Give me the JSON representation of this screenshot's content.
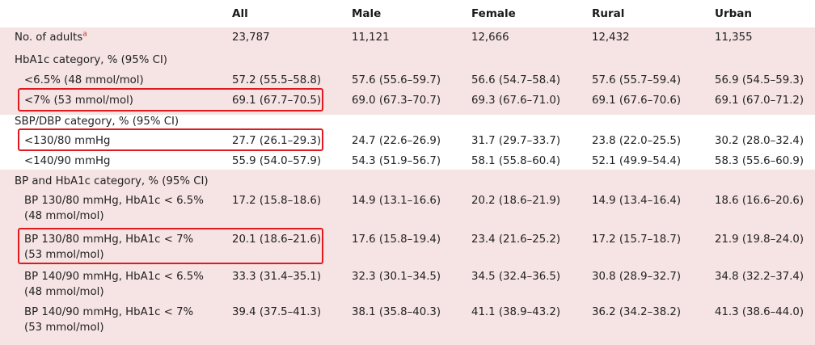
{
  "columns": {
    "all": "All",
    "male": "Male",
    "female": "Female",
    "rural": "Rural",
    "urban": "Urban"
  },
  "rows": [
    {
      "label": "No. of adults",
      "label_sup": "a",
      "all": "23,787",
      "male": "11,121",
      "female": "12,666",
      "rural": "12,432",
      "urban": "11,355"
    },
    {
      "section": "HbA1c category, % (95% CI)"
    },
    {
      "label": "<6.5% (48 mmol/mol)",
      "all": "57.2 (55.5–58.8)",
      "male": "57.6 (55.6–59.7)",
      "female": "56.6 (54.7–58.4)",
      "rural": "57.6 (55.7–59.4)",
      "urban": "56.9 (54.5–59.3)"
    },
    {
      "label": "<7% (53 mmol/mol)",
      "all": "69.1 (67.7–70.5)",
      "male": "69.0 (67.3–70.7)",
      "female": "69.3 (67.6–71.0)",
      "rural": "69.1 (67.6–70.6)",
      "urban": "69.1 (67.0–71.2)"
    },
    {
      "section": "SBP/DBP category, % (95% CI)"
    },
    {
      "label": "<130/80 mmHg",
      "all": "27.7 (26.1–29.3)",
      "male": "24.7 (22.6–26.9)",
      "female": "31.7 (29.7–33.7)",
      "rural": "23.8 (22.0–25.5)",
      "urban": "30.2 (28.0–32.4)"
    },
    {
      "label": "<140/90 mmHg",
      "all": "55.9 (54.0–57.9)",
      "male": "54.3 (51.9–56.7)",
      "female": "58.1 (55.8–60.4)",
      "rural": "52.1 (49.9–54.4)",
      "urban": "58.3 (55.6–60.9)"
    },
    {
      "section": "BP and HbA1c category, % (95% CI)"
    },
    {
      "label": "BP 130/80 mmHg, HbA1c < 6.5%",
      "label2": "(48 mmol/mol)",
      "all": "17.2 (15.8–18.6)",
      "male": "14.9 (13.1–16.6)",
      "female": "20.2 (18.6–21.9)",
      "rural": "14.9 (13.4–16.4)",
      "urban": "18.6 (16.6–20.6)"
    },
    {
      "label": "BP 130/80 mmHg, HbA1c < 7%",
      "label2": "(53 mmol/mol)",
      "all": "20.1 (18.6–21.6)",
      "male": "17.6 (15.8–19.4)",
      "female": "23.4 (21.6–25.2)",
      "rural": "17.2 (15.7–18.7)",
      "urban": "21.9 (19.8–24.0)"
    },
    {
      "label": "BP 140/90 mmHg, HbA1c < 6.5%",
      "label2": "(48 mmol/mol)",
      "all": "33.3 (31.4–35.1)",
      "male": "32.3 (30.1–34.5)",
      "female": "34.5 (32.4–36.5)",
      "rural": "30.8 (28.9–32.7)",
      "urban": "34.8 (32.2–37.4)"
    },
    {
      "label": "BP 140/90 mmHg, HbA1c < 7%",
      "label2": "(53 mmol/mol)",
      "all": "39.4 (37.5–41.3)",
      "male": "38.1 (35.8–40.3)",
      "female": "41.1 (38.9–43.2)",
      "rural": "36.2 (34.2–38.2)",
      "urban": "41.3 (38.6–44.0)"
    }
  ],
  "colors": {
    "band": "#f6e3e3",
    "highlight": "#e0191e",
    "footnote": "#c0392b"
  }
}
